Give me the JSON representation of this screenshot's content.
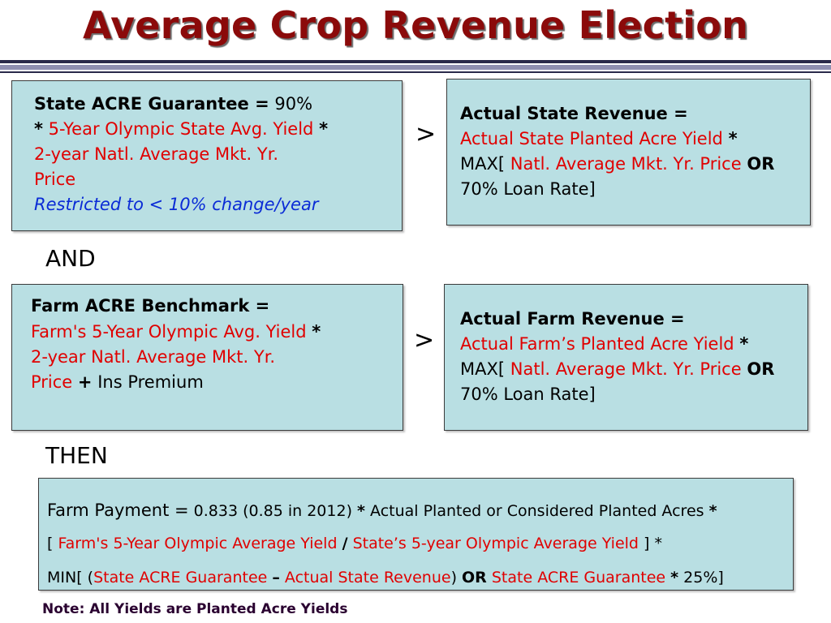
{
  "title": "Average Crop Revenue Election",
  "state_guarantee": {
    "label": "State ACRE Guarantee =",
    "pct": "90%",
    "star1": "*",
    "yield": "5-Year Olympic State Avg. Yield",
    "star2": "*",
    "price_line1": "2-year Natl. Average Mkt. Yr.",
    "price_line2": "Price",
    "restriction": "Restricted to < 10% change/year"
  },
  "state_revenue": {
    "label": "Actual State Revenue =",
    "yield": "Actual State Planted Acre Yield",
    "star": "*",
    "max_open": "MAX[",
    "price": "Natl. Average Mkt. Yr. Price",
    "or": "OR",
    "loan": "70% Loan Rate]"
  },
  "farm_benchmark": {
    "label": "Farm ACRE Benchmark =",
    "yield": "Farm's 5-Year Olympic Avg. Yield",
    "star": "*",
    "price_line1": "2-year Natl. Average Mkt. Yr.",
    "price_line2": "Price",
    "plus": "+",
    "premium": "Ins Premium"
  },
  "farm_revenue": {
    "label": "Actual Farm Revenue =",
    "yield": "Actual Farm’s Planted Acre Yield",
    "star": "*",
    "max_open": "MAX[",
    "price": "Natl. Average Mkt. Yr. Price",
    "or": "OR",
    "loan": "70% Loan Rate]"
  },
  "comparator_1": ">",
  "comparator_2": ">",
  "and": "AND",
  "then": "THEN",
  "payment": {
    "line1_label": "Farm Payment =",
    "line1_factor": "0.833 (0.85 in 2012)",
    "line1_star": "*",
    "line1_acres": "Actual Planted or Considered Planted Acres",
    "line1_star2": "*",
    "line2_open": "[",
    "line2_farm_yield": "Farm's 5-Year Olympic Average Yield",
    "line2_div": "/",
    "line2_state_yield": "State’s 5-year Olympic Average Yield",
    "line2_close": "] *",
    "line3_min": "MIN[ (",
    "line3_guarantee": "State ACRE Guarantee",
    "line3_minus": "–",
    "line3_revenue": "Actual State Revenue",
    "line3_paren": ")",
    "line3_or": "OR",
    "line3_guarantee2": "State ACRE Guarantee",
    "line3_star": "*",
    "line3_end": "25%]"
  },
  "note": "Note: All Yields are Planted Acre Yields"
}
